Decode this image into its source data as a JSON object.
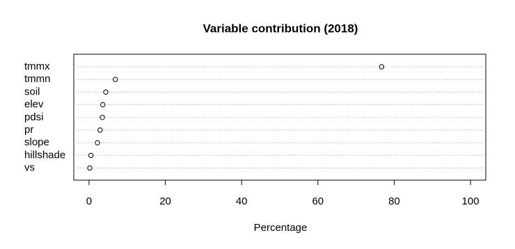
{
  "chart_data": {
    "type": "dot",
    "title": "Variable contribution (2018)",
    "x_label": "Percentage",
    "categories": [
      "tmmx",
      "tmmn",
      "soil",
      "elev",
      "pdsi",
      "pr",
      "slope",
      "hillshade",
      "vs"
    ],
    "values": [
      76.7,
      6.9,
      4.4,
      3.6,
      3.5,
      2.9,
      2.2,
      0.5,
      0.2
    ],
    "color": "#000000",
    "xlim": [
      -4,
      104
    ],
    "xticks": [
      0,
      20,
      40,
      60,
      80,
      100
    ],
    "grid": true
  }
}
